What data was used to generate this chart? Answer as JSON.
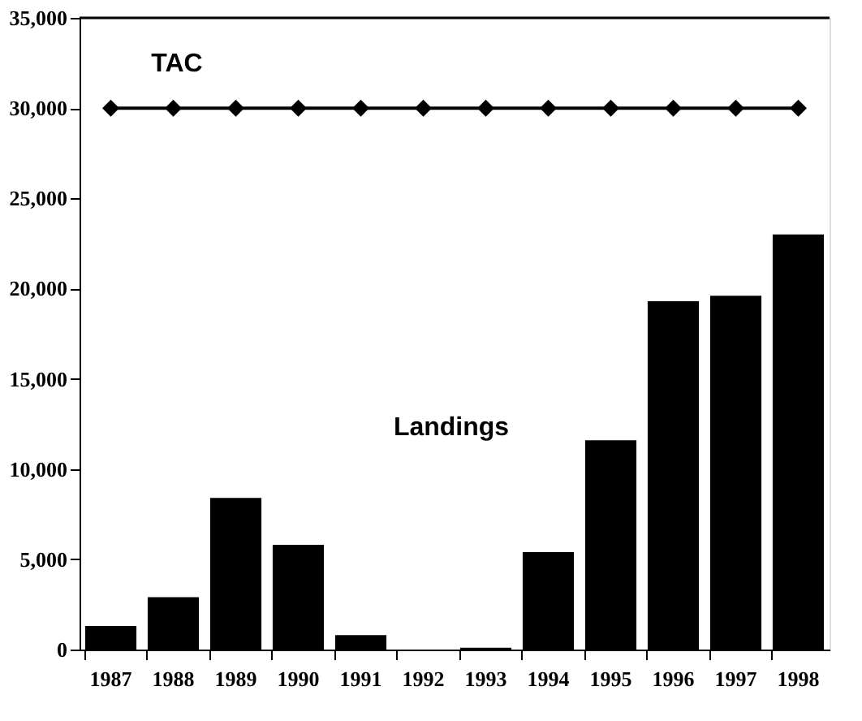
{
  "chart_data": {
    "type": "bar",
    "categories": [
      "1987",
      "1988",
      "1989",
      "1990",
      "1991",
      "1992",
      "1993",
      "1994",
      "1995",
      "1996",
      "1997",
      "1998"
    ],
    "series": [
      {
        "name": "Landings",
        "color": "#000000",
        "values": [
          1300,
          2900,
          8400,
          5800,
          800,
          0,
          100,
          5400,
          11600,
          19300,
          19600,
          23000
        ]
      },
      {
        "name": "TAC",
        "type": "line",
        "color": "#000000",
        "marker": "diamond",
        "values": [
          30000,
          30000,
          30000,
          30000,
          30000,
          30000,
          30000,
          30000,
          30000,
          30000,
          30000,
          30000
        ]
      }
    ],
    "ylim": [
      0,
      35000
    ],
    "yticks": [
      0,
      {
        "value": 5000,
        "label": "5,000"
      },
      {
        "value": 10000,
        "label": "10,000"
      },
      {
        "value": 15000,
        "label": "15,000"
      },
      {
        "value": 20000,
        "label": "20,000"
      },
      {
        "value": 25000,
        "label": "25,000"
      },
      {
        "value": 30000,
        "label": "30,000"
      },
      {
        "value": 35000,
        "label": "35,000"
      }
    ],
    "grid": false
  }
}
